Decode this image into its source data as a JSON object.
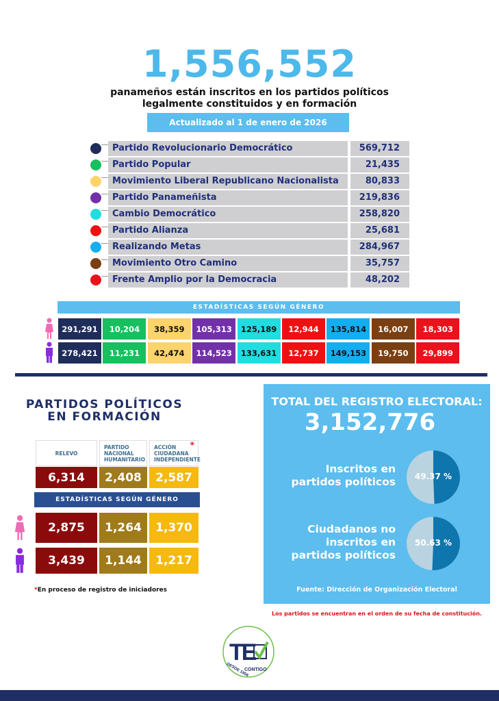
{
  "headline": {
    "total": "1,556,552",
    "line1": "panameños están inscritos en los partidos políticos",
    "line2": "legalmente constituidos y en formación",
    "date_banner": "Actualizado al 1 de enero de 2026"
  },
  "parties": [
    {
      "name": "Partido Revolucionario Democrático",
      "value": "569,712",
      "color": "#1f2d5a",
      "female": "291,291",
      "male": "278,421",
      "text": "#fff"
    },
    {
      "name": "Partido Popular",
      "value": "21,435",
      "color": "#17bf5f",
      "female": "10,204",
      "male": "11,231",
      "text": "#fff"
    },
    {
      "name": "Movimiento Liberal Republicano Nacionalista",
      "value": "80,833",
      "color": "#fdd36b",
      "female": "38,359",
      "male": "42,474",
      "text": "#111"
    },
    {
      "name": "Partido Panameñista",
      "value": "219,836",
      "color": "#7231a8",
      "female": "105,313",
      "male": "114,523",
      "text": "#fff"
    },
    {
      "name": "Cambio Democrático",
      "value": "258,820",
      "color": "#22dce0",
      "female": "125,189",
      "male": "133,631",
      "text": "#111"
    },
    {
      "name": "Partido Alianza",
      "value": "25,681",
      "color": "#ee1111",
      "female": "12,944",
      "male": "12,737",
      "text": "#fff"
    },
    {
      "name": "Realizando Metas",
      "value": "284,967",
      "color": "#14aef0",
      "female": "135,814",
      "male": "149,153",
      "text": "#111"
    },
    {
      "name": "Movimiento Otro Camino",
      "value": "35,757",
      "color": "#7a3f12",
      "female": "16,007",
      "male": "19,750",
      "text": "#fff"
    },
    {
      "name": "Frente Amplio por la Democracia",
      "value": "48,202",
      "color": "#e8131b",
      "female": "18,303",
      "male": "29,899",
      "text": "#fff"
    }
  ],
  "gender_banner": "ESTADÍSTICAS SEGÚN GÉNERO",
  "formation": {
    "title1": "PARTIDOS POLÍTICOS",
    "title2": "EN FORMACIÓN",
    "parties": [
      {
        "name": "RELEVO",
        "total": "6,314",
        "female": "2,875",
        "male": "3,439",
        "color": "#8b0a0c"
      },
      {
        "name": "PARTIDO NACIONAL HUMANITARIO",
        "total": "2,408",
        "female": "1,264",
        "male": "1,144",
        "color": "#a07b1c"
      },
      {
        "name": "ACCIÓN CIUDADANA INDEPENDIENTE",
        "total": "2,587",
        "female": "1,370",
        "male": "1,217",
        "color": "#f5b90f",
        "asterisk": "*"
      }
    ],
    "gender_banner": "ESTADÍSTICAS SEGÚN GÉNERO",
    "footnote_mark": "*",
    "footnote": "En proceso de registro de iniciadores"
  },
  "registry": {
    "title": "TOTAL DEL REGISTRO ELECTORAL:",
    "total": "3,152,776",
    "pies": [
      {
        "label": "Inscritos en partidos políticos",
        "percent": 49.37,
        "percent_label": "49.37 %"
      },
      {
        "label": "Ciudadanos no inscritos en partidos políticos",
        "percent": 50.63,
        "percent_label": "50.63 %"
      }
    ],
    "source": "Fuente: Dirección de Organización Electoral"
  },
  "order_note": "Los partidos se encuentran en el orden de su fecha de constitución.",
  "logo": {
    "letters": "TE",
    "text": "DESDE 1956 CONTIGO"
  },
  "colors": {
    "accent": "#5cbdee",
    "navy": "#1f2f66",
    "female": "#f06bb5",
    "male": "#8a2be2",
    "pie_dark": "#0f75ad",
    "pie_light": "#b9d3e0"
  }
}
